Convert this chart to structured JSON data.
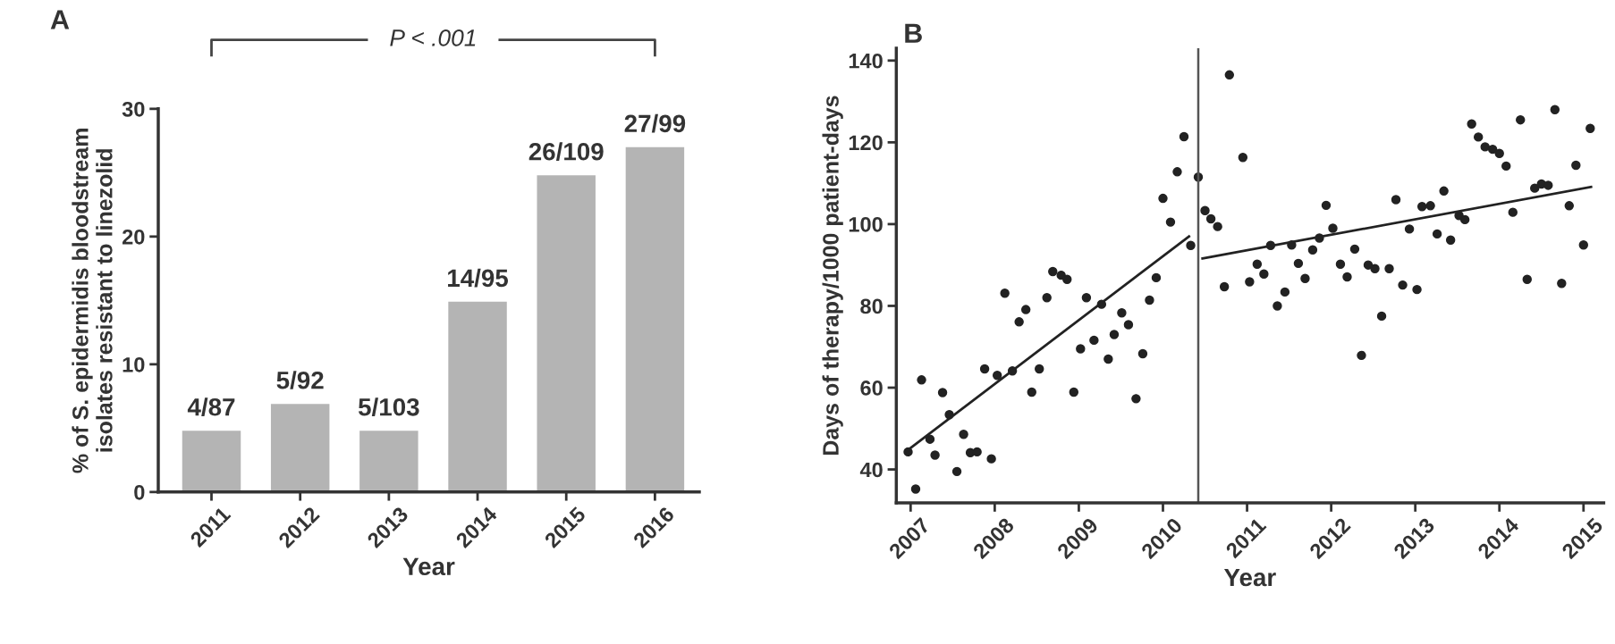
{
  "chart_data": [
    {
      "type": "bar",
      "categories": [
        "2011",
        "2012",
        "2013",
        "2014",
        "2015",
        "2016"
      ],
      "values": [
        4.8,
        6.9,
        4.8,
        14.9,
        24.8,
        27.0
      ],
      "color": "#b4b4b4",
      "value_labels": [
        "4/87",
        "5/92",
        "5/103",
        "14/95",
        "26/109",
        "27/99"
      ],
      "ylim": [
        0,
        30
      ],
      "yticks": [
        0,
        10,
        20,
        30
      ],
      "xlabel": "Year",
      "ylabel": "% of S. epidermidis bloodstream\nisolates resistant to linezolid",
      "annotations": [
        "A",
        "P < .001"
      ],
      "grid": false,
      "legend": false
    },
    {
      "type": "scatter",
      "xlabel": "Year",
      "ylabel": "Days of therapy/1000 patient-days",
      "annotations": [
        "B"
      ],
      "xlim": [
        2006.83,
        2015.24
      ],
      "xticks": [
        2007,
        2008,
        2009,
        2010,
        2011,
        2012,
        2013,
        2014,
        2015
      ],
      "ylim": [
        31.8,
        143
      ],
      "yticks": [
        40,
        60,
        80,
        100,
        120,
        140
      ],
      "grid": false,
      "legend": false,
      "ref_lines": [
        {
          "axis": "x",
          "value": 2010.42,
          "color": "#555555"
        }
      ],
      "series": [
        {
          "type": "scatter",
          "color": "#222222",
          "marker": "circle",
          "x": [
            2006.97,
            2007.06,
            2007.13,
            2007.23,
            2007.29,
            2007.38,
            2007.46,
            2007.55,
            2007.63,
            2007.71,
            2007.79,
            2007.88,
            2007.96,
            2008.03,
            2008.12,
            2008.21,
            2008.29,
            2008.37,
            2008.44,
            2008.53,
            2008.62,
            2008.69,
            2008.79,
            2008.86,
            2008.94,
            2009.02,
            2009.09,
            2009.18,
            2009.27,
            2009.35,
            2009.42,
            2009.51,
            2009.59,
            2009.68,
            2009.76,
            2009.84,
            2009.92,
            2010.0,
            2010.09,
            2010.17,
            2010.25,
            2010.33,
            2010.42,
            2010.5,
            2010.57,
            2010.65,
            2010.73,
            2010.79,
            2010.95,
            2011.03,
            2011.12,
            2011.2,
            2011.28,
            2011.36,
            2011.45,
            2011.53,
            2011.61,
            2011.69,
            2011.78,
            2011.86,
            2011.94,
            2012.02,
            2012.11,
            2012.19,
            2012.28,
            2012.36,
            2012.44,
            2012.52,
            2012.6,
            2012.69,
            2012.77,
            2012.85,
            2012.93,
            2013.02,
            2013.08,
            2013.18,
            2013.26,
            2013.34,
            2013.42,
            2013.52,
            2013.59,
            2013.67,
            2013.75,
            2013.83,
            2013.92,
            2014.0,
            2014.08,
            2014.16,
            2014.25,
            2014.33,
            2014.42,
            2014.5,
            2014.58,
            2014.66,
            2014.74,
            2014.83,
            2014.91,
            2015.0,
            2015.08
          ],
          "values": [
            44.3,
            35.2,
            61.9,
            47.4,
            43.5,
            58.8,
            53.4,
            39.5,
            48.6,
            44.1,
            44.3,
            64.6,
            42.6,
            63.0,
            83.1,
            64.1,
            76.1,
            79.1,
            58.9,
            64.6,
            82.0,
            88.4,
            87.5,
            86.5,
            58.9,
            69.5,
            82.0,
            71.6,
            80.4,
            67.0,
            73.0,
            78.3,
            75.4,
            57.3,
            68.3,
            81.4,
            86.9,
            106.3,
            100.5,
            112.8,
            121.4,
            94.8,
            111.5,
            103.3,
            101.3,
            99.4,
            84.7,
            136.5,
            116.3,
            85.9,
            90.2,
            87.8,
            94.8,
            80.0,
            83.4,
            94.9,
            90.4,
            86.7,
            93.7,
            96.6,
            104.6,
            99.0,
            90.2,
            87.1,
            93.9,
            67.9,
            90.0,
            89.1,
            77.5,
            89.1,
            106.0,
            85.1,
            98.8,
            84.0,
            104.3,
            104.5,
            97.6,
            108.1,
            96.1,
            102.1,
            101.1,
            124.5,
            121.3,
            118.9,
            118.3,
            117.3,
            114.2,
            102.9,
            125.5,
            86.5,
            108.8,
            109.8,
            109.5,
            128.0,
            85.5,
            104.5,
            114.4,
            94.9,
            123.4
          ]
        },
        {
          "type": "line",
          "color": "#222222",
          "x": [
            2006.94,
            2010.31
          ],
          "values": [
            44.3,
            97.0
          ]
        },
        {
          "type": "line",
          "color": "#222222",
          "x": [
            2010.47,
            2015.09
          ],
          "values": [
            91.6,
            109.1
          ]
        }
      ]
    }
  ]
}
